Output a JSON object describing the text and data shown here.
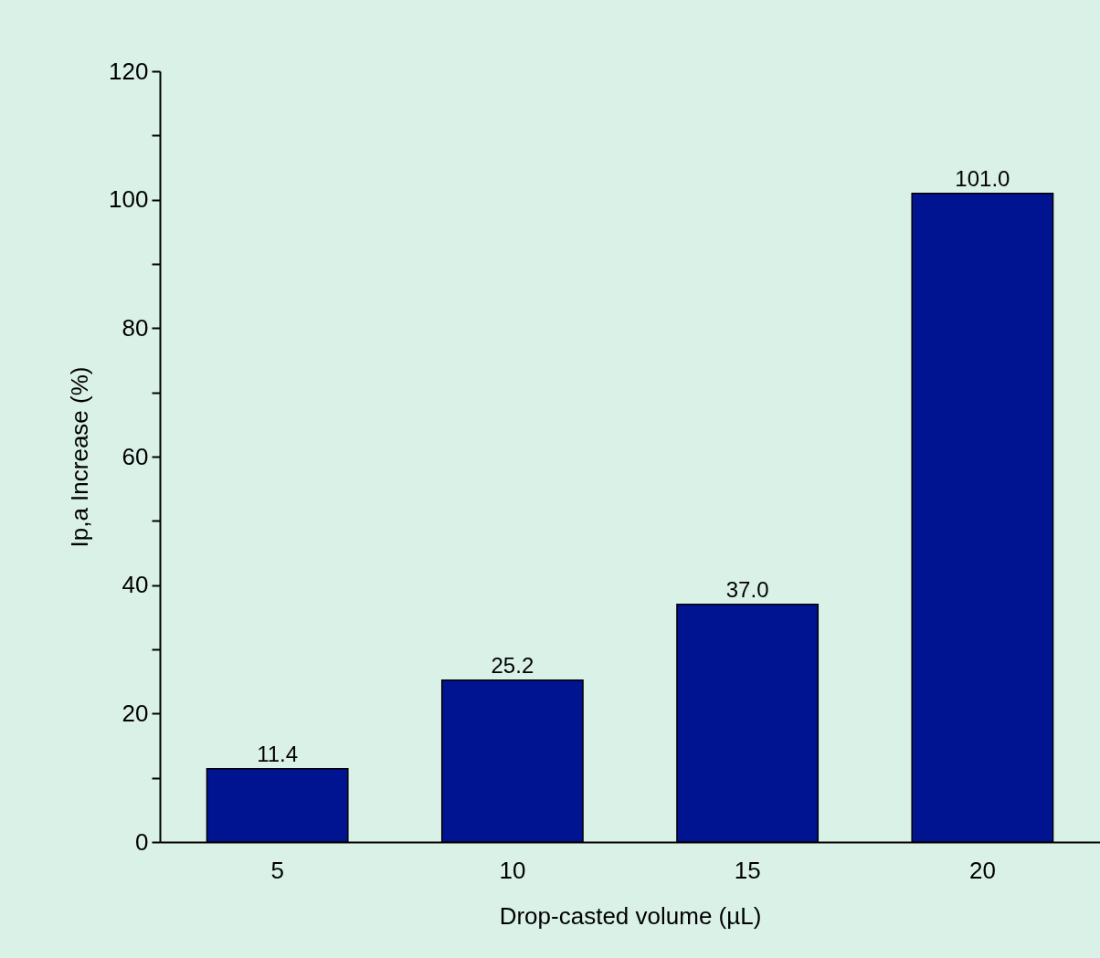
{
  "chart_data": {
    "type": "bar",
    "xlabel": "Drop-casted volume (µL)",
    "ylabel": "Ip,a Increase (%)",
    "categories": [
      "5",
      "10",
      "15",
      "20"
    ],
    "values": [
      11.4,
      25.2,
      37.0,
      101.0
    ],
    "value_labels": [
      "11.4",
      "25.2",
      "37.0",
      "101.0"
    ],
    "color": "#001391",
    "ylim": [
      0,
      120
    ],
    "yticks": [
      0,
      {
        "value": 10,
        "label": null
      },
      20,
      {
        "value": 30,
        "label": null
      },
      40,
      {
        "value": 50,
        "label": null
      },
      60,
      {
        "value": 70,
        "label": null
      },
      80,
      {
        "value": 90,
        "label": null
      },
      100,
      {
        "value": 110,
        "label": null
      },
      120
    ],
    "grid": false
  }
}
